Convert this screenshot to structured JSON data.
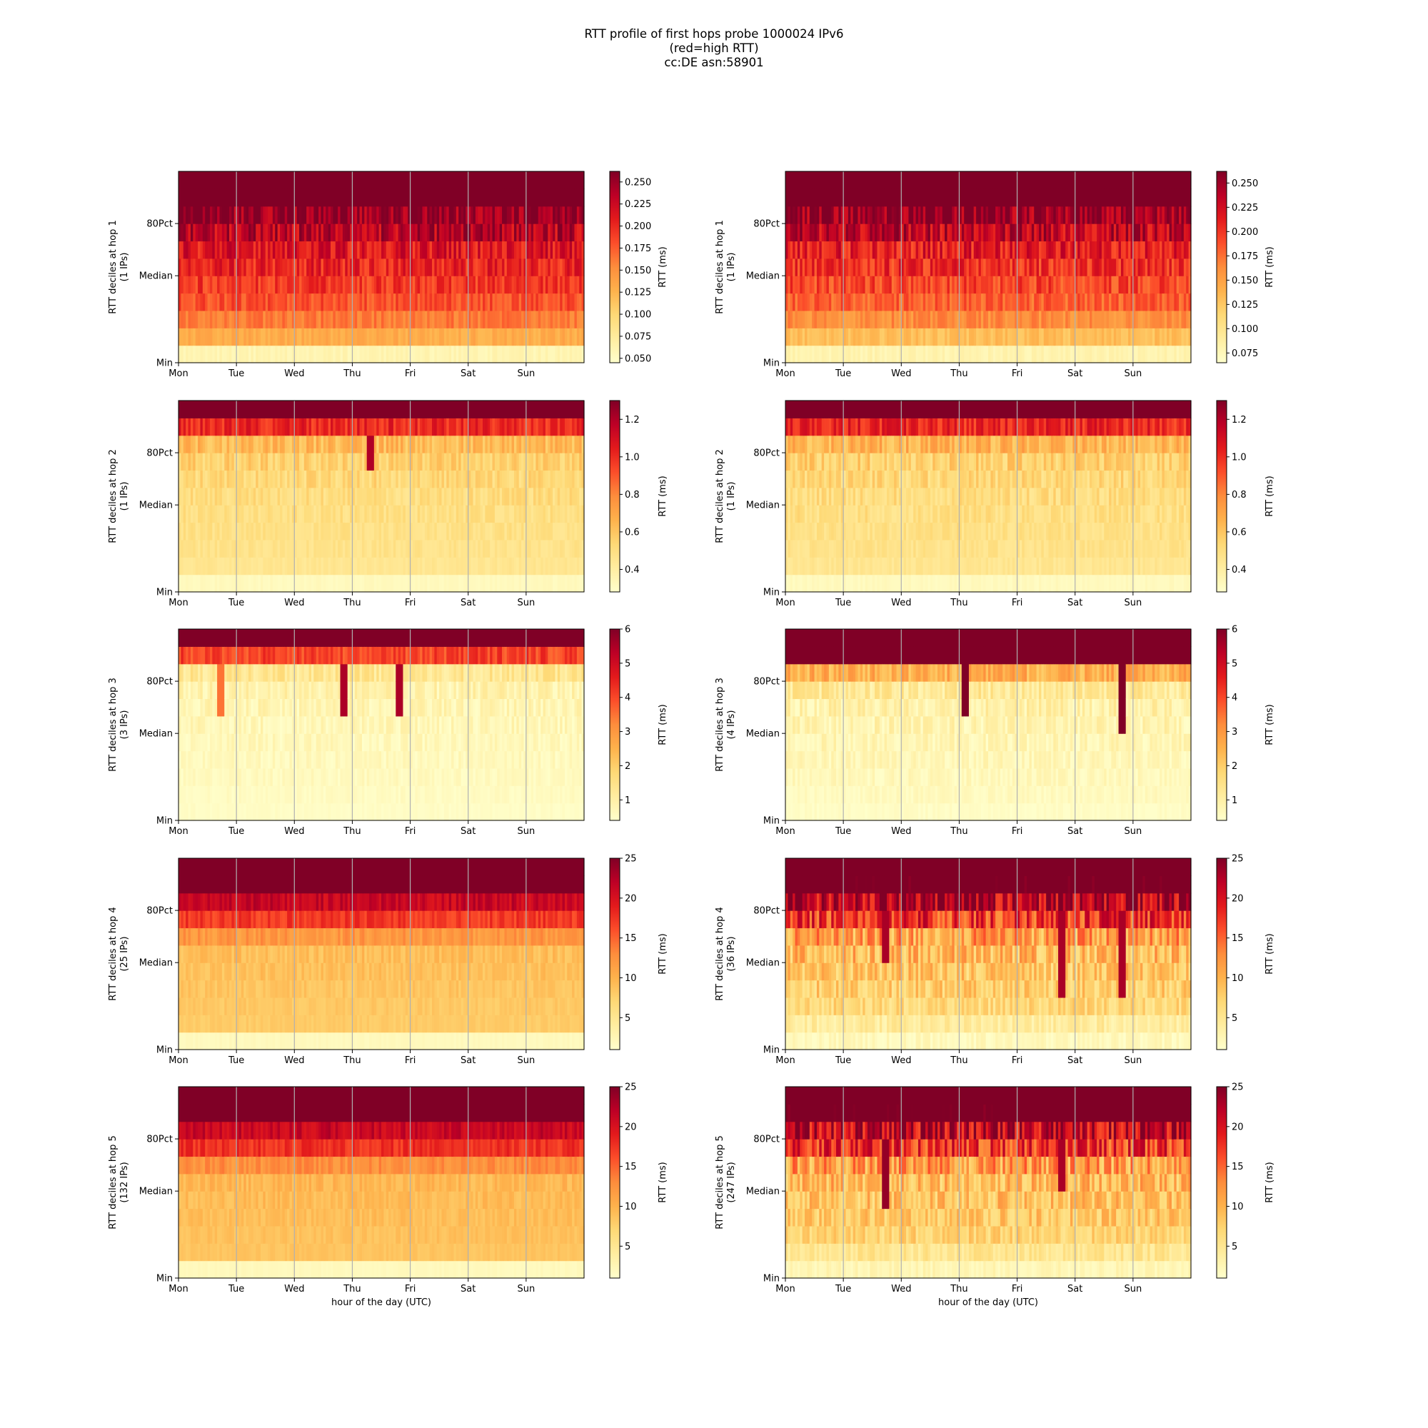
{
  "title_lines": [
    "RTT profile of first hops probe 1000024 IPv6",
    "(red=high RTT)",
    "cc:DE asn:58901"
  ],
  "colormap": [
    "#ffffcc",
    "#ffeda0",
    "#fed976",
    "#feb24c",
    "#fd8d3c",
    "#fc4e2a",
    "#e31a1c",
    "#bd0026",
    "#800026"
  ],
  "chart_data": [
    {
      "type": "heatmap",
      "ylabel": "RTT deciles at hop 1",
      "ylabel2": "(1 IPs)",
      "xlabel": "",
      "yticks": [
        "80Pct",
        "Median",
        "Min"
      ],
      "xticks": [
        "Mon",
        "Tue",
        "Wed",
        "Thu",
        "Fri",
        "Sat",
        "Sun"
      ],
      "colorbar_label": "RTT (ms)",
      "colorbar_ticks": [
        "0.050",
        "0.075",
        "0.100",
        "0.125",
        "0.150",
        "0.175",
        "0.200",
        "0.225",
        "0.250"
      ],
      "clim": [
        0.045,
        0.262
      ],
      "decile_rtt": [
        0.06,
        0.13,
        0.16,
        0.18,
        0.19,
        0.2,
        0.21,
        0.23,
        0.25,
        0.3,
        0.5
      ],
      "noise": 0.012,
      "events": []
    },
    {
      "type": "heatmap",
      "ylabel": "RTT deciles at hop 1",
      "ylabel2": "(1 IPs)",
      "xlabel": "",
      "yticks": [
        "80Pct",
        "Median",
        "Min"
      ],
      "xticks": [
        "Mon",
        "Tue",
        "Wed",
        "Thu",
        "Fri",
        "Sat",
        "Sun"
      ],
      "colorbar_label": "RTT (ms)",
      "colorbar_ticks": [
        "0.075",
        "0.100",
        "0.125",
        "0.150",
        "0.175",
        "0.200",
        "0.225",
        "0.250"
      ],
      "clim": [
        0.065,
        0.262
      ],
      "decile_rtt": [
        0.08,
        0.13,
        0.16,
        0.18,
        0.19,
        0.2,
        0.21,
        0.23,
        0.25,
        0.3,
        0.5
      ],
      "noise": 0.012,
      "events": []
    },
    {
      "type": "heatmap",
      "ylabel": "RTT deciles at hop 2",
      "ylabel2": "(1 IPs)",
      "xlabel": "",
      "yticks": [
        "80Pct",
        "Median",
        "Min"
      ],
      "xticks": [
        "Mon",
        "Tue",
        "Wed",
        "Thu",
        "Fri",
        "Sat",
        "Sun"
      ],
      "colorbar_label": "RTT (ms)",
      "colorbar_ticks": [
        "0.4",
        "0.6",
        "0.8",
        "1.0",
        "1.2"
      ],
      "clim": [
        0.28,
        1.3
      ],
      "decile_rtt": [
        0.32,
        0.45,
        0.47,
        0.48,
        0.49,
        0.5,
        0.52,
        0.55,
        0.63,
        1.0,
        2.0
      ],
      "noise": 0.03,
      "events": [
        {
          "day": 3.3,
          "from": 7,
          "to": 8,
          "rtt": 1.2
        }
      ]
    },
    {
      "type": "heatmap",
      "ylabel": "RTT deciles at hop 2",
      "ylabel2": "(1 IPs)",
      "xlabel": "",
      "yticks": [
        "80Pct",
        "Median",
        "Min"
      ],
      "xticks": [
        "Mon",
        "Tue",
        "Wed",
        "Thu",
        "Fri",
        "Sat",
        "Sun"
      ],
      "colorbar_label": "RTT (ms)",
      "colorbar_ticks": [
        "0.4",
        "0.6",
        "0.8",
        "1.0",
        "1.2"
      ],
      "clim": [
        0.28,
        1.3
      ],
      "decile_rtt": [
        0.32,
        0.45,
        0.47,
        0.48,
        0.49,
        0.5,
        0.52,
        0.55,
        0.65,
        1.0,
        2.0
      ],
      "noise": 0.035,
      "events": []
    },
    {
      "type": "heatmap",
      "ylabel": "RTT deciles at hop 3",
      "ylabel2": "(3 IPs)",
      "xlabel": "",
      "yticks": [
        "80Pct",
        "Median",
        "Min"
      ],
      "xticks": [
        "Mon",
        "Tue",
        "Wed",
        "Thu",
        "Fri",
        "Sat",
        "Sun"
      ],
      "colorbar_label": "RTT (ms)",
      "colorbar_ticks": [
        "1",
        "2",
        "3",
        "4",
        "5",
        "6"
      ],
      "clim": [
        0.4,
        6.0
      ],
      "decile_rtt": [
        0.5,
        0.55,
        0.6,
        0.62,
        0.65,
        0.7,
        0.75,
        0.85,
        1.3,
        4.0,
        8.0
      ],
      "noise": 0.15,
      "events": [
        {
          "day": 0.7,
          "from": 6,
          "to": 8,
          "rtt": 3.5
        },
        {
          "day": 2.85,
          "from": 6,
          "to": 8,
          "rtt": 5.5
        },
        {
          "day": 3.8,
          "from": 6,
          "to": 8,
          "rtt": 5.5
        }
      ]
    },
    {
      "type": "heatmap",
      "ylabel": "RTT deciles at hop 3",
      "ylabel2": "(4 IPs)",
      "xlabel": "",
      "yticks": [
        "80Pct",
        "Median",
        "Min"
      ],
      "xticks": [
        "Mon",
        "Tue",
        "Wed",
        "Thu",
        "Fri",
        "Sat",
        "Sun"
      ],
      "colorbar_label": "RTT (ms)",
      "colorbar_ticks": [
        "1",
        "2",
        "3",
        "4",
        "5",
        "6"
      ],
      "clim": [
        0.4,
        6.0
      ],
      "decile_rtt": [
        0.5,
        0.6,
        0.65,
        0.7,
        0.75,
        0.8,
        0.9,
        1.2,
        2.5,
        8.0,
        10.0
      ],
      "noise": 0.2,
      "events": [
        {
          "day": 3.1,
          "from": 6,
          "to": 8,
          "rtt": 7.0
        },
        {
          "day": 5.8,
          "from": 5,
          "to": 8,
          "rtt": 7.0
        }
      ]
    },
    {
      "type": "heatmap",
      "ylabel": "RTT deciles at hop 4",
      "ylabel2": "(25 IPs)",
      "xlabel": "",
      "yticks": [
        "80Pct",
        "Median",
        "Min"
      ],
      "xticks": [
        "Mon",
        "Tue",
        "Wed",
        "Thu",
        "Fri",
        "Sat",
        "Sun"
      ],
      "colorbar_label": "RTT (ms)",
      "colorbar_ticks": [
        "5",
        "10",
        "15",
        "20",
        "25"
      ],
      "clim": [
        1.0,
        25.0
      ],
      "decile_rtt": [
        2.0,
        8.0,
        8.2,
        8.5,
        8.8,
        9.0,
        12.0,
        17.0,
        21.0,
        30.0,
        40.0
      ],
      "noise": 0.6,
      "events": []
    },
    {
      "type": "heatmap",
      "ylabel": "RTT deciles at hop 4",
      "ylabel2": "(36 IPs)",
      "xlabel": "",
      "yticks": [
        "80Pct",
        "Median",
        "Min"
      ],
      "xticks": [
        "Mon",
        "Tue",
        "Wed",
        "Thu",
        "Fri",
        "Sat",
        "Sun"
      ],
      "colorbar_label": "RTT (ms)",
      "colorbar_ticks": [
        "5",
        "10",
        "15",
        "20",
        "25"
      ],
      "clim": [
        1.0,
        25.0
      ],
      "decile_rtt": [
        2.0,
        4.0,
        6.5,
        7.5,
        8.0,
        9.0,
        11.0,
        17.0,
        22.0,
        30.0,
        40.0
      ],
      "noise": 2.0,
      "events": [
        {
          "day": 1.7,
          "from": 5,
          "to": 7,
          "rtt": 23.0
        },
        {
          "day": 4.75,
          "from": 3,
          "to": 7,
          "rtt": 23.0
        },
        {
          "day": 5.8,
          "from": 3,
          "to": 7,
          "rtt": 23.0
        }
      ]
    },
    {
      "type": "heatmap",
      "ylabel": "RTT deciles at hop 5",
      "ylabel2": "(132 IPs)",
      "xlabel": "hour of the day (UTC)",
      "yticks": [
        "80Pct",
        "Median",
        "Min"
      ],
      "xticks": [
        "Mon",
        "Tue",
        "Wed",
        "Thu",
        "Fri",
        "Sat",
        "Sun"
      ],
      "colorbar_label": "RTT (ms)",
      "colorbar_ticks": [
        "5",
        "10",
        "15",
        "20",
        "25"
      ],
      "clim": [
        1.0,
        25.0
      ],
      "decile_rtt": [
        2.0,
        8.5,
        8.8,
        9.0,
        9.2,
        9.5,
        12.5,
        17.5,
        21.0,
        30.0,
        40.0
      ],
      "noise": 0.6,
      "events": []
    },
    {
      "type": "heatmap",
      "ylabel": "RTT deciles at hop 5",
      "ylabel2": "(247 IPs)",
      "xlabel": "hour of the day (UTC)",
      "yticks": [
        "80Pct",
        "Median",
        "Min"
      ],
      "xticks": [
        "Mon",
        "Tue",
        "Wed",
        "Thu",
        "Fri",
        "Sat",
        "Sun"
      ],
      "colorbar_label": "RTT (ms)",
      "colorbar_ticks": [
        "5",
        "10",
        "15",
        "20",
        "25"
      ],
      "clim": [
        1.0,
        25.0
      ],
      "decile_rtt": [
        2.5,
        5.0,
        7.0,
        8.0,
        8.5,
        9.0,
        11.0,
        17.0,
        21.0,
        30.0,
        40.0
      ],
      "noise": 2.0,
      "events": [
        {
          "day": 1.7,
          "from": 4,
          "to": 7,
          "rtt": 24.0
        },
        {
          "day": 4.75,
          "from": 5,
          "to": 7,
          "rtt": 23.0
        }
      ]
    }
  ]
}
